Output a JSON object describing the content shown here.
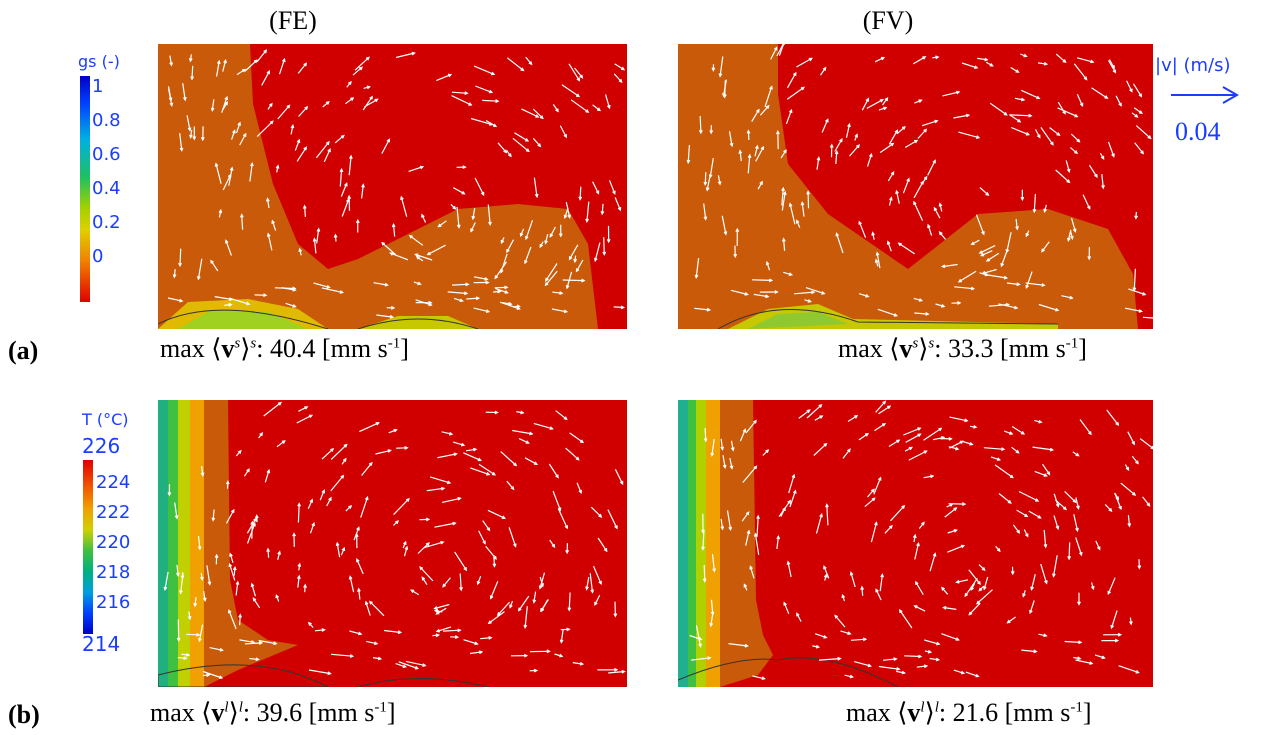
{
  "columns": {
    "fe": "(FE)",
    "fv": "(FV)"
  },
  "rows": {
    "a": "(a)",
    "b": "(b)"
  },
  "colorbar_gs": {
    "title": "gs (-)",
    "ticks": [
      "1",
      "0.8",
      "0.6",
      "0.4",
      "0.2",
      "0"
    ]
  },
  "colorbar_T": {
    "title": "T (°C)",
    "top_label": "226",
    "ticks": [
      "224",
      "222",
      "220",
      "218",
      "216"
    ],
    "bottom_label": "214"
  },
  "velocity_scale": {
    "title": "|v| (m/s)",
    "value": "0.04"
  },
  "captions": {
    "a_fe": {
      "prefix": "max ⟨",
      "vec": "v",
      "sup_in": "s",
      "mid": "⟩",
      "sup_out": "s",
      "text": ": 40.4 [mm s",
      "exp": "-1",
      "suffix": "]"
    },
    "a_fv": {
      "prefix": "max ⟨",
      "vec": "v",
      "sup_in": "s",
      "mid": "⟩",
      "sup_out": "s",
      "text": ": 33.3 [mm s",
      "exp": "-1",
      "suffix": "]"
    },
    "b_fe": {
      "prefix": "max ⟨",
      "vec": "v",
      "sup_in": "l",
      "mid": "⟩",
      "sup_out": "l",
      "text": ": 39.6 [mm s",
      "exp": "-1",
      "suffix": "]"
    },
    "b_fv": {
      "prefix": "max ⟨",
      "vec": "v",
      "sup_in": "l",
      "mid": "⟩",
      "sup_out": "l",
      "text": ": 21.6 [mm s",
      "exp": "-1",
      "suffix": "]"
    }
  },
  "colors": {
    "hot_red": "#d00000",
    "orange": "#cc5500",
    "label_blue": "#1a3dff"
  }
}
